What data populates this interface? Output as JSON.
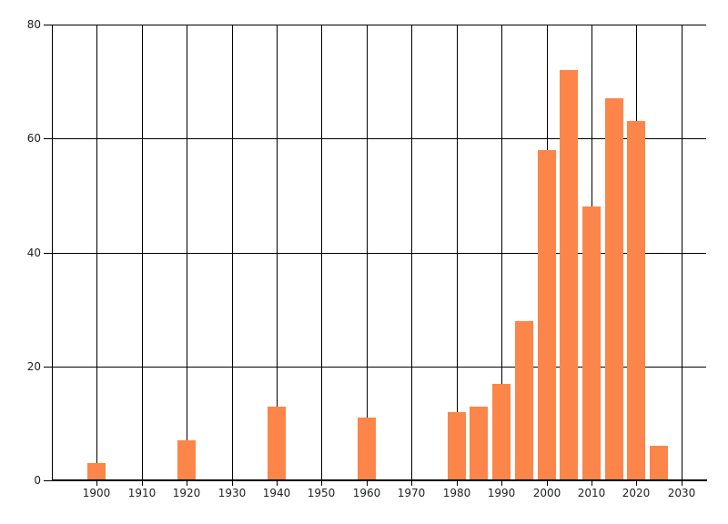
{
  "chart_data": {
    "type": "bar",
    "title": "",
    "xlabel": "",
    "ylabel": "",
    "x": [
      1900,
      1920,
      1940,
      1960,
      1980,
      1985,
      1990,
      1995,
      2000,
      2005,
      2010,
      2015,
      2020,
      2025
    ],
    "values": [
      3,
      7,
      13,
      11,
      12,
      13,
      17,
      28,
      58,
      72,
      48,
      67,
      63,
      6
    ],
    "xlim": [
      1890,
      2035.5
    ],
    "ylim": [
      0,
      80
    ],
    "x_gridline_years": [
      1890,
      1900,
      1910,
      1920,
      1930,
      1940,
      1950,
      1960,
      1970,
      1980,
      1990,
      2000,
      2010,
      2020,
      2030
    ],
    "x_tick_years": [
      1900,
      1910,
      1920,
      1930,
      1940,
      1950,
      1960,
      1970,
      1980,
      1990,
      2000,
      2010,
      2020,
      2030
    ],
    "y_ticks": [
      0,
      20,
      40,
      60,
      80
    ],
    "grid": "on",
    "legend": "none",
    "colors": {
      "bar": "#FC854A",
      "grid": "#000000",
      "axis": "#000000",
      "tick_label": "#222222",
      "background": "#FFFFFF"
    }
  }
}
